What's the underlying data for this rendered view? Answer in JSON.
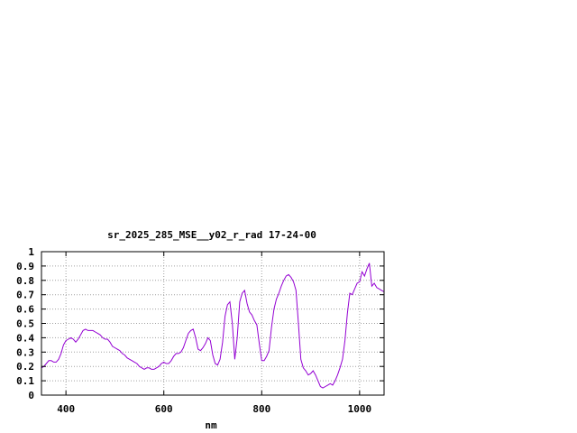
{
  "chart_data": {
    "type": "line",
    "title": "sr_2025_285_MSE__y02_r_rad 17-24-00",
    "xlabel": "nm",
    "ylabel": "",
    "xlim": [
      350,
      1050
    ],
    "ylim": [
      0,
      1
    ],
    "xticks": [
      400,
      600,
      800,
      1000
    ],
    "yticks": [
      0,
      0.1,
      0.2,
      0.3,
      0.4,
      0.5,
      0.6,
      0.7,
      0.8,
      0.9,
      1
    ],
    "ytick_labels": [
      "0",
      "0.1",
      "0.2",
      "0.3",
      "0.4",
      "0.5",
      "0.6",
      "0.7",
      "0.8",
      "0.9",
      "1"
    ],
    "xtick_labels": [
      "400",
      "600",
      "800",
      "1000"
    ],
    "grid": true,
    "legend": "none",
    "series": [
      {
        "color": "#9400d3",
        "x": [
          350,
          355,
          360,
          365,
          370,
          375,
          380,
          385,
          390,
          395,
          400,
          405,
          410,
          415,
          420,
          425,
          430,
          435,
          440,
          445,
          450,
          455,
          460,
          465,
          470,
          475,
          480,
          485,
          490,
          495,
          500,
          505,
          510,
          515,
          520,
          525,
          530,
          535,
          540,
          545,
          550,
          555,
          560,
          565,
          570,
          575,
          580,
          585,
          590,
          595,
          600,
          605,
          610,
          615,
          620,
          625,
          630,
          635,
          640,
          645,
          650,
          655,
          660,
          665,
          670,
          675,
          680,
          685,
          690,
          695,
          700,
          705,
          710,
          715,
          720,
          725,
          730,
          735,
          740,
          745,
          750,
          755,
          760,
          765,
          770,
          775,
          780,
          785,
          790,
          795,
          800,
          805,
          810,
          815,
          820,
          825,
          830,
          835,
          840,
          845,
          850,
          855,
          860,
          865,
          870,
          875,
          880,
          885,
          890,
          895,
          900,
          905,
          910,
          915,
          920,
          925,
          930,
          935,
          940,
          945,
          950,
          955,
          960,
          965,
          970,
          975,
          980,
          985,
          990,
          995,
          1000,
          1005,
          1010,
          1015,
          1020,
          1025,
          1030,
          1035,
          1040,
          1045,
          1050
        ],
        "y": [
          0.19,
          0.2,
          0.22,
          0.24,
          0.24,
          0.23,
          0.23,
          0.25,
          0.29,
          0.35,
          0.38,
          0.39,
          0.4,
          0.39,
          0.37,
          0.39,
          0.42,
          0.45,
          0.46,
          0.45,
          0.45,
          0.45,
          0.44,
          0.43,
          0.42,
          0.4,
          0.39,
          0.39,
          0.37,
          0.34,
          0.33,
          0.32,
          0.31,
          0.29,
          0.28,
          0.26,
          0.25,
          0.24,
          0.23,
          0.22,
          0.2,
          0.19,
          0.18,
          0.19,
          0.19,
          0.18,
          0.18,
          0.19,
          0.2,
          0.22,
          0.23,
          0.22,
          0.22,
          0.24,
          0.27,
          0.29,
          0.29,
          0.3,
          0.33,
          0.38,
          0.43,
          0.45,
          0.46,
          0.4,
          0.32,
          0.31,
          0.33,
          0.36,
          0.4,
          0.38,
          0.28,
          0.22,
          0.21,
          0.25,
          0.37,
          0.55,
          0.63,
          0.65,
          0.5,
          0.25,
          0.4,
          0.65,
          0.71,
          0.73,
          0.64,
          0.58,
          0.56,
          0.52,
          0.49,
          0.36,
          0.24,
          0.24,
          0.27,
          0.31,
          0.47,
          0.6,
          0.67,
          0.71,
          0.76,
          0.8,
          0.83,
          0.84,
          0.82,
          0.79,
          0.73,
          0.5,
          0.25,
          0.19,
          0.17,
          0.14,
          0.15,
          0.17,
          0.14,
          0.1,
          0.06,
          0.05,
          0.06,
          0.07,
          0.08,
          0.07,
          0.1,
          0.14,
          0.19,
          0.25,
          0.38,
          0.57,
          0.71,
          0.7,
          0.74,
          0.78,
          0.79,
          0.86,
          0.83,
          0.88,
          0.92,
          0.76,
          0.78,
          0.75,
          0.74,
          0.73,
          0.72
        ]
      }
    ]
  }
}
